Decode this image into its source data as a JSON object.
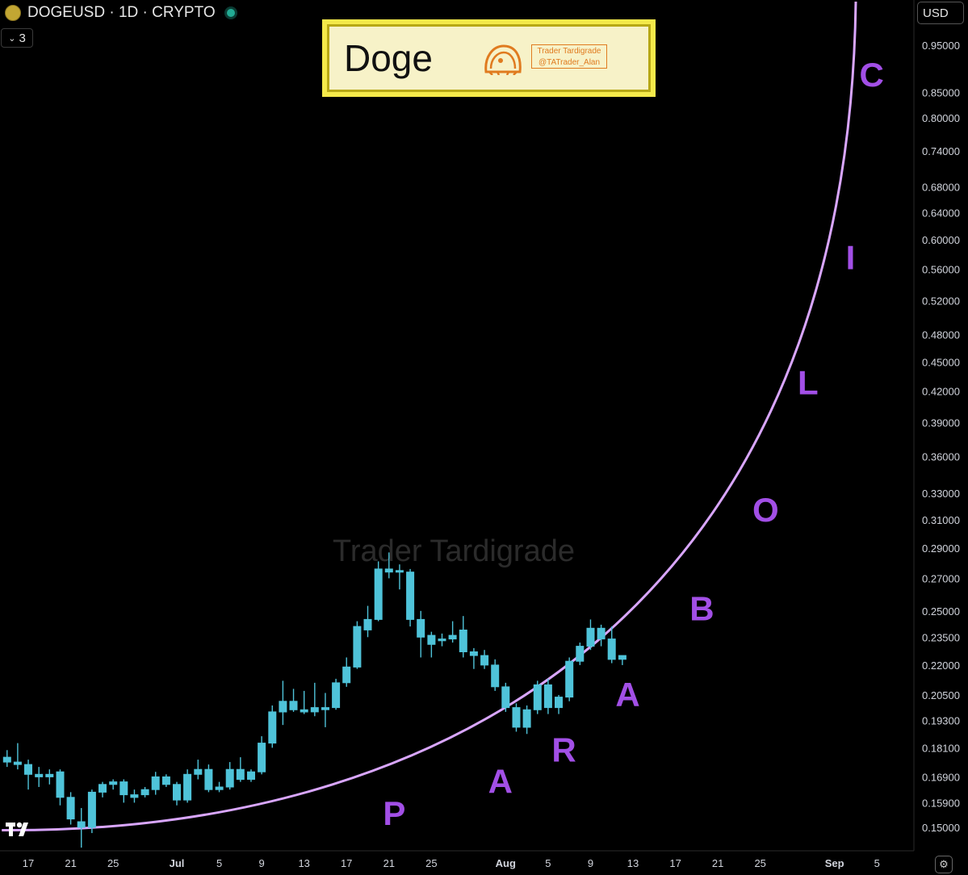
{
  "header": {
    "symbol_line": "DOGEUSD · 1D · CRYPTO",
    "indicator_count": "3",
    "currency": "USD"
  },
  "banner": {
    "title": "Doge",
    "credit_line1": "Trader Tardigrade",
    "credit_line2": "@TATrader_Alan"
  },
  "watermark": "Trader Tardigrade",
  "colors": {
    "background": "#000000",
    "candle": "#4fc3d9",
    "curve": "#d9a6ff",
    "letters": "#a24fe6",
    "banner_border": "#f4e94a",
    "status_dot": "#22ab94"
  },
  "icons": [
    "doge-coin-icon",
    "chevron-down-icon",
    "tradingview-logo-icon",
    "settings-icon"
  ],
  "chart_data": {
    "type": "candlestick",
    "title": "DOGEUSD · 1D · CRYPTO",
    "xlabel": "",
    "ylabel": "",
    "y_scale": "log",
    "ylim": [
      0.143,
      1.07
    ],
    "y_ticks": [
      "0.95000",
      "0.85000",
      "0.80000",
      "0.74000",
      "0.68000",
      "0.64000",
      "0.60000",
      "0.56000",
      "0.52000",
      "0.48000",
      "0.45000",
      "0.42000",
      "0.39000",
      "0.36000",
      "0.33000",
      "0.31000",
      "0.29000",
      "0.27000",
      "0.25000",
      "0.23500",
      "0.22000",
      "0.20500",
      "0.19300",
      "0.18100",
      "0.16900",
      "0.15900",
      "0.15000"
    ],
    "x_ticks": [
      "17",
      "21",
      "25",
      "Jul",
      "5",
      "9",
      "13",
      "17",
      "21",
      "25",
      "Aug",
      "5",
      "9",
      "13",
      "17",
      "21",
      "25",
      "Sep",
      "5"
    ],
    "x_tick_days": [
      -14,
      -10,
      -6,
      0,
      4,
      8,
      12,
      16,
      20,
      24,
      31,
      35,
      39,
      43,
      47,
      51,
      55,
      62,
      66
    ],
    "x_tick_bold": [
      "Jul",
      "Aug",
      "Sep"
    ],
    "day_axis_note": "x in days relative to Jul 1",
    "candles": [
      {
        "d": -16,
        "o": 0.177,
        "h": 0.18,
        "l": 0.173,
        "c": 0.175
      },
      {
        "d": -15,
        "o": 0.175,
        "h": 0.183,
        "l": 0.172,
        "c": 0.174
      },
      {
        "d": -14,
        "o": 0.174,
        "h": 0.176,
        "l": 0.164,
        "c": 0.17
      },
      {
        "d": -13,
        "o": 0.17,
        "h": 0.173,
        "l": 0.165,
        "c": 0.169
      },
      {
        "d": -12,
        "o": 0.169,
        "h": 0.172,
        "l": 0.166,
        "c": 0.17
      },
      {
        "d": -11,
        "o": 0.171,
        "h": 0.172,
        "l": 0.158,
        "c": 0.161
      },
      {
        "d": -10,
        "o": 0.161,
        "h": 0.163,
        "l": 0.151,
        "c": 0.153
      },
      {
        "d": -9,
        "o": 0.152,
        "h": 0.157,
        "l": 0.143,
        "c": 0.15
      },
      {
        "d": -8,
        "o": 0.15,
        "h": 0.164,
        "l": 0.148,
        "c": 0.163
      },
      {
        "d": -7,
        "o": 0.163,
        "h": 0.167,
        "l": 0.161,
        "c": 0.166
      },
      {
        "d": -6,
        "o": 0.166,
        "h": 0.168,
        "l": 0.164,
        "c": 0.167
      },
      {
        "d": -5,
        "o": 0.167,
        "h": 0.168,
        "l": 0.159,
        "c": 0.162
      },
      {
        "d": -4,
        "o": 0.162,
        "h": 0.164,
        "l": 0.159,
        "c": 0.161
      },
      {
        "d": -3,
        "o": 0.162,
        "h": 0.165,
        "l": 0.161,
        "c": 0.164
      },
      {
        "d": -2,
        "o": 0.164,
        "h": 0.171,
        "l": 0.162,
        "c": 0.169
      },
      {
        "d": -1,
        "o": 0.169,
        "h": 0.17,
        "l": 0.165,
        "c": 0.166
      },
      {
        "d": 0,
        "o": 0.166,
        "h": 0.167,
        "l": 0.158,
        "c": 0.16
      },
      {
        "d": 1,
        "o": 0.16,
        "h": 0.172,
        "l": 0.159,
        "c": 0.17
      },
      {
        "d": 2,
        "o": 0.17,
        "h": 0.176,
        "l": 0.168,
        "c": 0.172
      },
      {
        "d": 3,
        "o": 0.172,
        "h": 0.174,
        "l": 0.163,
        "c": 0.164
      },
      {
        "d": 4,
        "o": 0.164,
        "h": 0.167,
        "l": 0.163,
        "c": 0.165
      },
      {
        "d": 5,
        "o": 0.165,
        "h": 0.175,
        "l": 0.164,
        "c": 0.172
      },
      {
        "d": 6,
        "o": 0.172,
        "h": 0.177,
        "l": 0.167,
        "c": 0.168
      },
      {
        "d": 7,
        "o": 0.168,
        "h": 0.172,
        "l": 0.167,
        "c": 0.171
      },
      {
        "d": 8,
        "o": 0.171,
        "h": 0.186,
        "l": 0.17,
        "c": 0.183
      },
      {
        "d": 9,
        "o": 0.183,
        "h": 0.2,
        "l": 0.181,
        "c": 0.197
      },
      {
        "d": 10,
        "o": 0.197,
        "h": 0.212,
        "l": 0.191,
        "c": 0.202
      },
      {
        "d": 11,
        "o": 0.202,
        "h": 0.208,
        "l": 0.197,
        "c": 0.198
      },
      {
        "d": 12,
        "o": 0.198,
        "h": 0.207,
        "l": 0.196,
        "c": 0.197
      },
      {
        "d": 13,
        "o": 0.197,
        "h": 0.211,
        "l": 0.195,
        "c": 0.199
      },
      {
        "d": 14,
        "o": 0.199,
        "h": 0.206,
        "l": 0.19,
        "c": 0.198
      },
      {
        "d": 15,
        "o": 0.199,
        "h": 0.213,
        "l": 0.198,
        "c": 0.211
      },
      {
        "d": 16,
        "o": 0.211,
        "h": 0.224,
        "l": 0.209,
        "c": 0.219
      },
      {
        "d": 17,
        "o": 0.219,
        "h": 0.244,
        "l": 0.218,
        "c": 0.241
      },
      {
        "d": 18,
        "o": 0.239,
        "h": 0.253,
        "l": 0.235,
        "c": 0.245
      },
      {
        "d": 19,
        "o": 0.245,
        "h": 0.281,
        "l": 0.244,
        "c": 0.276
      },
      {
        "d": 20,
        "o": 0.276,
        "h": 0.287,
        "l": 0.27,
        "c": 0.274
      },
      {
        "d": 21,
        "o": 0.274,
        "h": 0.279,
        "l": 0.263,
        "c": 0.275
      },
      {
        "d": 22,
        "o": 0.274,
        "h": 0.276,
        "l": 0.241,
        "c": 0.245
      },
      {
        "d": 23,
        "o": 0.245,
        "h": 0.25,
        "l": 0.224,
        "c": 0.235
      },
      {
        "d": 24,
        "o": 0.236,
        "h": 0.238,
        "l": 0.224,
        "c": 0.231
      },
      {
        "d": 25,
        "o": 0.233,
        "h": 0.237,
        "l": 0.23,
        "c": 0.234
      },
      {
        "d": 26,
        "o": 0.234,
        "h": 0.244,
        "l": 0.232,
        "c": 0.236
      },
      {
        "d": 27,
        "o": 0.239,
        "h": 0.247,
        "l": 0.224,
        "c": 0.227
      },
      {
        "d": 28,
        "o": 0.227,
        "h": 0.229,
        "l": 0.218,
        "c": 0.225
      },
      {
        "d": 29,
        "o": 0.225,
        "h": 0.228,
        "l": 0.218,
        "c": 0.22
      },
      {
        "d": 30,
        "o": 0.22,
        "h": 0.223,
        "l": 0.207,
        "c": 0.209
      },
      {
        "d": 31,
        "o": 0.209,
        "h": 0.211,
        "l": 0.197,
        "c": 0.199
      },
      {
        "d": 32,
        "o": 0.199,
        "h": 0.201,
        "l": 0.188,
        "c": 0.19
      },
      {
        "d": 33,
        "o": 0.19,
        "h": 0.2,
        "l": 0.187,
        "c": 0.198
      },
      {
        "d": 34,
        "o": 0.198,
        "h": 0.212,
        "l": 0.196,
        "c": 0.21
      },
      {
        "d": 35,
        "o": 0.21,
        "h": 0.213,
        "l": 0.196,
        "c": 0.199
      },
      {
        "d": 36,
        "o": 0.199,
        "h": 0.205,
        "l": 0.196,
        "c": 0.204
      },
      {
        "d": 37,
        "o": 0.204,
        "h": 0.224,
        "l": 0.202,
        "c": 0.222
      },
      {
        "d": 38,
        "o": 0.222,
        "h": 0.232,
        "l": 0.22,
        "c": 0.23
      },
      {
        "d": 39,
        "o": 0.23,
        "h": 0.245,
        "l": 0.228,
        "c": 0.24
      },
      {
        "d": 40,
        "o": 0.24,
        "h": 0.242,
        "l": 0.23,
        "c": 0.234
      },
      {
        "d": 41,
        "o": 0.234,
        "h": 0.241,
        "l": 0.221,
        "c": 0.223
      },
      {
        "d": 42,
        "o": 0.223,
        "h": 0.225,
        "l": 0.22,
        "c": 0.225
      }
    ],
    "curve_label_points": [
      {
        "label": "P",
        "x_day": 20.5,
        "y": 0.155
      },
      {
        "label": "A",
        "x_day": 30.5,
        "y": 0.167
      },
      {
        "label": "R",
        "x_day": 36.5,
        "y": 0.18
      },
      {
        "label": "A",
        "x_day": 42.5,
        "y": 0.205
      },
      {
        "label": "B",
        "x_day": 49.5,
        "y": 0.251
      },
      {
        "label": "O",
        "x_day": 55.5,
        "y": 0.317
      },
      {
        "label": "L",
        "x_day": 59.5,
        "y": 0.428
      },
      {
        "label": "I",
        "x_day": 63.5,
        "y": 0.575
      },
      {
        "label": "C",
        "x_day": 65.5,
        "y": 0.885
      }
    ],
    "curve": {
      "start_day": -16.5,
      "start_y": 0.149,
      "end_day": 64,
      "end_y": 1.07
    }
  }
}
